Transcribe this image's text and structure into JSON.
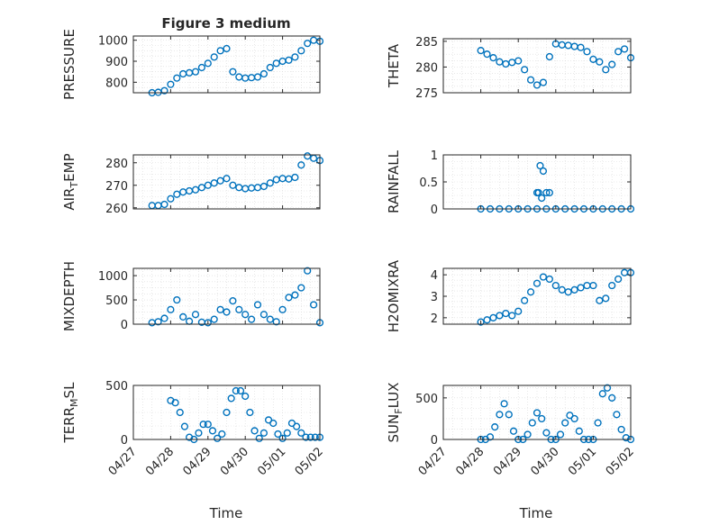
{
  "figure": {
    "title": "Figure 3 medium",
    "xlabel": "Time",
    "marker_color": "#0072BD",
    "date_ticks": [
      "04/27",
      "04/28",
      "04/29",
      "04/30",
      "05/01",
      "05/02"
    ]
  },
  "chart_data": [
    {
      "type": "scatter",
      "ylabel": "PRESSURE",
      "ylim": [
        750,
        1020
      ],
      "yticks": [
        800,
        900,
        1000
      ],
      "xlim": [
        "04/27",
        "05/02"
      ],
      "grid": true,
      "x": [
        "04/27 12:00",
        "04/27 16:00",
        "04/27 20:00",
        "04/28 00:00",
        "04/28 04:00",
        "04/28 08:00",
        "04/28 12:00",
        "04/28 16:00",
        "04/28 20:00",
        "04/29 00:00",
        "04/29 04:00",
        "04/29 08:00",
        "04/29 12:00",
        "04/29 16:00",
        "04/29 20:00",
        "04/30 00:00",
        "04/30 04:00",
        "04/30 08:00",
        "04/30 12:00",
        "04/30 16:00",
        "04/30 20:00",
        "05/01 00:00",
        "05/01 04:00",
        "05/01 08:00",
        "05/01 12:00",
        "05/01 16:00",
        "05/01 20:00",
        "05/02 00:00"
      ],
      "y": [
        750,
        752,
        760,
        790,
        820,
        840,
        845,
        850,
        870,
        890,
        920,
        950,
        960,
        850,
        825,
        820,
        822,
        825,
        840,
        870,
        890,
        900,
        905,
        920,
        950,
        985,
        1000,
        995
      ]
    },
    {
      "type": "scatter",
      "ylabel": "THETA",
      "ylim": [
        275,
        285.5
      ],
      "yticks": [
        275,
        280,
        285
      ],
      "xlim": [
        "04/27",
        "05/02"
      ],
      "grid": true,
      "x": [
        "04/28 00:00",
        "04/28 04:00",
        "04/28 08:00",
        "04/28 12:00",
        "04/28 16:00",
        "04/28 20:00",
        "04/29 00:00",
        "04/29 04:00",
        "04/29 08:00",
        "04/29 12:00",
        "04/29 16:00",
        "04/29 20:00",
        "04/30 00:00",
        "04/30 04:00",
        "04/30 08:00",
        "04/30 12:00",
        "04/30 16:00",
        "04/30 20:00",
        "05/01 00:00",
        "05/01 04:00",
        "05/01 08:00",
        "05/01 12:00",
        "05/01 16:00",
        "05/01 20:00",
        "05/02 00:00"
      ],
      "y": [
        283.2,
        282.5,
        281.8,
        281.0,
        280.6,
        280.9,
        281.2,
        279.5,
        277.5,
        276.5,
        277.0,
        282.0,
        284.5,
        284.3,
        284.2,
        284.0,
        283.8,
        283.0,
        281.5,
        281.0,
        279.5,
        280.5,
        283.0,
        283.5,
        281.8
      ]
    },
    {
      "type": "scatter",
      "ylabel": "AIR_TEMP",
      "ylim": [
        259.5,
        283.5
      ],
      "yticks": [
        260,
        270,
        280
      ],
      "xlim": [
        "04/27",
        "05/02"
      ],
      "grid": true,
      "x": [
        "04/27 12:00",
        "04/27 16:00",
        "04/27 20:00",
        "04/28 00:00",
        "04/28 04:00",
        "04/28 08:00",
        "04/28 12:00",
        "04/28 16:00",
        "04/28 20:00",
        "04/29 00:00",
        "04/29 04:00",
        "04/29 08:00",
        "04/29 12:00",
        "04/29 16:00",
        "04/29 20:00",
        "04/30 00:00",
        "04/30 04:00",
        "04/30 08:00",
        "04/30 12:00",
        "04/30 16:00",
        "04/30 20:00",
        "05/01 00:00",
        "05/01 04:00",
        "05/01 08:00",
        "05/01 12:00",
        "05/01 16:00",
        "05/01 20:00",
        "05/02 00:00"
      ],
      "y": [
        261,
        261,
        261.5,
        264,
        266,
        267,
        267.5,
        268,
        269,
        270,
        271,
        272,
        273,
        270,
        269,
        268.5,
        268.8,
        269,
        269.5,
        271,
        272.5,
        273,
        272.8,
        273.5,
        279,
        283,
        282,
        281
      ]
    },
    {
      "type": "scatter",
      "ylabel": "RAINFALL",
      "ylim": [
        0,
        1
      ],
      "yticks": [
        0,
        0.5,
        1
      ],
      "xlim": [
        "04/27",
        "05/02"
      ],
      "grid": true,
      "x": [
        "04/28 00:00",
        "04/28 06:00",
        "04/28 12:00",
        "04/28 18:00",
        "04/29 00:00",
        "04/29 06:00",
        "04/29 12:00",
        "04/29 18:00",
        "04/30 00:00",
        "04/30 06:00",
        "04/30 12:00",
        "04/30 18:00",
        "05/01 00:00",
        "05/01 06:00",
        "05/01 12:00",
        "05/01 18:00",
        "05/02 00:00",
        "04/29 12:00",
        "04/29 14:00",
        "04/29 16:00",
        "04/29 18:00",
        "04/29 20:00",
        "04/29 15:00",
        "04/29 13:00"
      ],
      "y": [
        0,
        0,
        0,
        0,
        0,
        0,
        0,
        0,
        0,
        0,
        0,
        0,
        0,
        0,
        0,
        0,
        0,
        0.3,
        0.8,
        0.7,
        0.3,
        0.3,
        0.2,
        0.3
      ]
    },
    {
      "type": "scatter",
      "ylabel": "MIXDEPTH",
      "ylim": [
        0,
        1150
      ],
      "yticks": [
        0,
        500,
        1000
      ],
      "xlim": [
        "04/27",
        "05/02"
      ],
      "grid": true,
      "x": [
        "04/27 12:00",
        "04/27 16:00",
        "04/27 20:00",
        "04/28 00:00",
        "04/28 04:00",
        "04/28 08:00",
        "04/28 12:00",
        "04/28 16:00",
        "04/28 20:00",
        "04/29 00:00",
        "04/29 04:00",
        "04/29 08:00",
        "04/29 12:00",
        "04/29 16:00",
        "04/29 20:00",
        "04/30 00:00",
        "04/30 04:00",
        "04/30 08:00",
        "04/30 12:00",
        "04/30 16:00",
        "04/30 20:00",
        "05/01 00:00",
        "05/01 04:00",
        "05/01 08:00",
        "05/01 12:00",
        "05/01 16:00",
        "05/01 20:00",
        "05/02 00:00"
      ],
      "y": [
        30,
        50,
        120,
        300,
        500,
        150,
        60,
        200,
        40,
        30,
        100,
        300,
        250,
        480,
        300,
        200,
        100,
        400,
        200,
        100,
        50,
        300,
        550,
        600,
        750,
        1100,
        400,
        30
      ]
    },
    {
      "type": "scatter",
      "ylabel": "H2OMIXRA",
      "ylim": [
        1.7,
        4.3
      ],
      "yticks": [
        2,
        3,
        4
      ],
      "xlim": [
        "04/27",
        "05/02"
      ],
      "grid": true,
      "x": [
        "04/28 00:00",
        "04/28 04:00",
        "04/28 08:00",
        "04/28 12:00",
        "04/28 16:00",
        "04/28 20:00",
        "04/29 00:00",
        "04/29 04:00",
        "04/29 08:00",
        "04/29 12:00",
        "04/29 16:00",
        "04/29 20:00",
        "04/30 00:00",
        "04/30 04:00",
        "04/30 08:00",
        "04/30 12:00",
        "04/30 16:00",
        "04/30 20:00",
        "05/01 00:00",
        "05/01 04:00",
        "05/01 08:00",
        "05/01 12:00",
        "05/01 16:00",
        "05/01 20:00",
        "05/02 00:00"
      ],
      "y": [
        1.8,
        1.9,
        2.0,
        2.1,
        2.2,
        2.1,
        2.3,
        2.8,
        3.2,
        3.6,
        3.9,
        3.8,
        3.5,
        3.3,
        3.2,
        3.3,
        3.4,
        3.5,
        3.5,
        2.8,
        2.9,
        3.5,
        3.8,
        4.1,
        4.1
      ]
    },
    {
      "type": "scatter",
      "ylabel": "TERR_MSL",
      "ylim": [
        0,
        500
      ],
      "yticks": [
        0,
        500
      ],
      "xlim": [
        "04/27",
        "05/02"
      ],
      "grid": true,
      "x": [
        "04/28 00:00",
        "04/28 03:00",
        "04/28 06:00",
        "04/28 09:00",
        "04/28 12:00",
        "04/28 15:00",
        "04/28 18:00",
        "04/28 21:00",
        "04/29 00:00",
        "04/29 03:00",
        "04/29 06:00",
        "04/29 09:00",
        "04/29 12:00",
        "04/29 15:00",
        "04/29 18:00",
        "04/29 21:00",
        "04/30 00:00",
        "04/30 03:00",
        "04/30 06:00",
        "04/30 09:00",
        "04/30 12:00",
        "04/30 15:00",
        "04/30 18:00",
        "04/30 21:00",
        "05/01 00:00",
        "05/01 03:00",
        "05/01 06:00",
        "05/01 09:00",
        "05/01 12:00",
        "05/01 15:00",
        "05/01 18:00",
        "05/01 21:00",
        "05/02 00:00"
      ],
      "y": [
        360,
        340,
        250,
        120,
        20,
        0,
        60,
        140,
        140,
        80,
        10,
        50,
        250,
        380,
        450,
        450,
        400,
        250,
        80,
        10,
        60,
        180,
        150,
        50,
        10,
        60,
        150,
        120,
        60,
        20,
        20,
        20,
        20
      ]
    },
    {
      "type": "scatter",
      "ylabel": "SUN_FLUX",
      "ylim": [
        0,
        650
      ],
      "yticks": [
        0,
        500
      ],
      "xlim": [
        "04/27",
        "05/02"
      ],
      "grid": true,
      "x": [
        "04/28 00:00",
        "04/28 03:00",
        "04/28 06:00",
        "04/28 09:00",
        "04/28 12:00",
        "04/28 15:00",
        "04/28 18:00",
        "04/28 21:00",
        "04/29 00:00",
        "04/29 03:00",
        "04/29 06:00",
        "04/29 09:00",
        "04/29 12:00",
        "04/29 15:00",
        "04/29 18:00",
        "04/29 21:00",
        "04/30 00:00",
        "04/30 03:00",
        "04/30 06:00",
        "04/30 09:00",
        "04/30 12:00",
        "04/30 15:00",
        "04/30 18:00",
        "04/30 21:00",
        "05/01 00:00",
        "05/01 03:00",
        "05/01 06:00",
        "05/01 09:00",
        "05/01 12:00",
        "05/01 15:00",
        "05/01 18:00",
        "05/01 21:00",
        "05/02 00:00"
      ],
      "y": [
        0,
        0,
        30,
        150,
        300,
        430,
        300,
        100,
        0,
        0,
        60,
        200,
        320,
        250,
        80,
        0,
        0,
        60,
        200,
        290,
        250,
        100,
        0,
        0,
        0,
        200,
        550,
        620,
        500,
        300,
        120,
        20,
        0
      ]
    }
  ]
}
